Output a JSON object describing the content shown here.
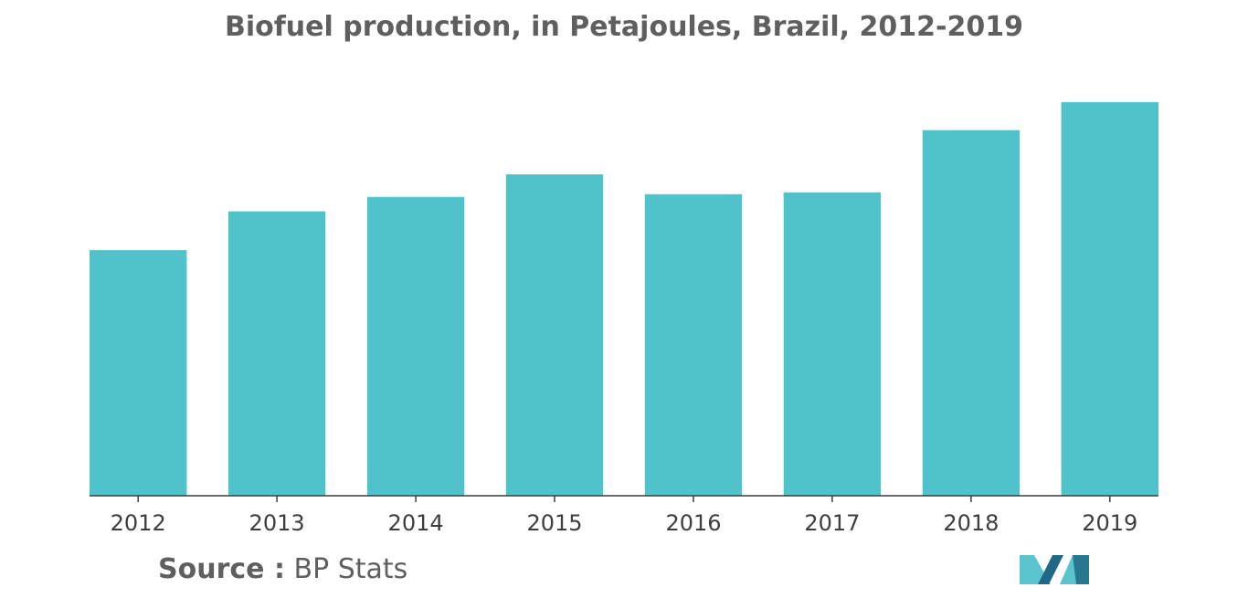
{
  "colors": {
    "bar": "#4fc3c9",
    "axis": "#3d3d3d",
    "text": "#5f5f5f"
  },
  "source": {
    "label": "Source :",
    "value": "BP Stats"
  },
  "logo": {
    "icon": "mordor-intelligence-logo-icon",
    "colors": [
      "#1e6a86",
      "#5bc3cc"
    ]
  },
  "chart_data": {
    "type": "bar",
    "title": "Biofuel production, in Petajoules, Brazil, 2012-2019",
    "xlabel": "",
    "ylabel": "",
    "categories": [
      "2012",
      "2013",
      "2014",
      "2015",
      "2016",
      "2017",
      "2018",
      "2019"
    ],
    "values": [
      272,
      315,
      331,
      356,
      334,
      336,
      405,
      436
    ],
    "ylim": [
      0,
      450
    ],
    "grid": false,
    "legend": "none"
  }
}
